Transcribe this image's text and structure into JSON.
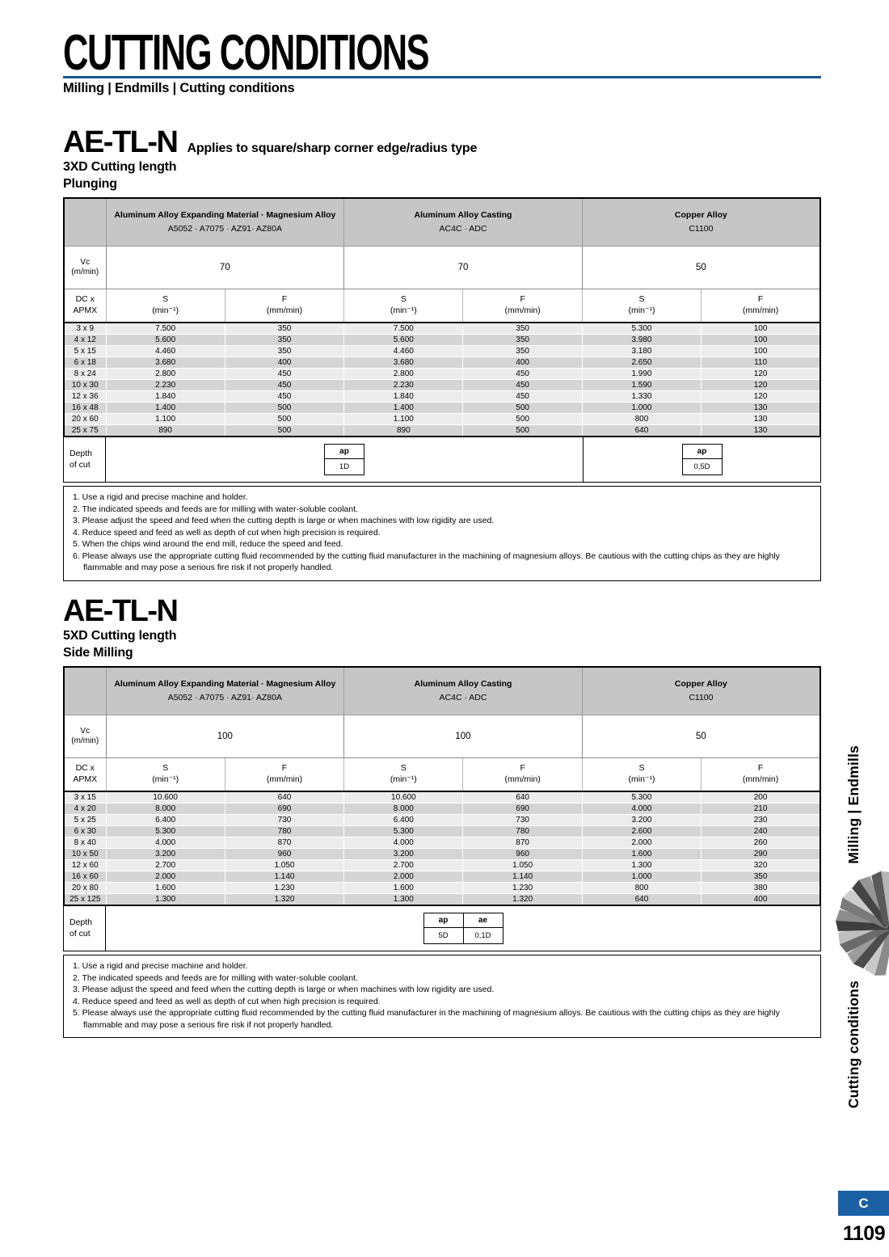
{
  "page": {
    "title": "CUTTING CONDITIONS",
    "breadcrumb": "Milling | Endmills | Cutting conditions",
    "sidebar_top": "Milling | Endmills",
    "sidebar_bottom": "Cutting conditions",
    "section_badge": "C",
    "page_number": "1109",
    "accent_rule_color": "#15568f",
    "badge_color": "#1b5fa5"
  },
  "table_labels": {
    "vc1": "Vc",
    "vc2": "(m/min)",
    "rh1": "DC x",
    "rh2": "APMX",
    "s": "S",
    "s_unit": "(min⁻¹)",
    "f": "F",
    "f_unit": "(mm/min)",
    "depth1": "Depth",
    "depth2": "of cut"
  },
  "sections": [
    {
      "title": "AE-TL-N",
      "subtitle": "Applies to square/sharp corner edge/radius type",
      "cut_length": "3XD Cutting length",
      "operation": "Plunging",
      "groups": [
        {
          "name": "Aluminum Alloy Expanding Material · Magnesium Alloy",
          "grades": "A5052 · A7075 · AZ91· AZ80A",
          "vc": "70"
        },
        {
          "name": "Aluminum Alloy Casting",
          "grades": "AC4C · ADC",
          "vc": "70"
        },
        {
          "name": "Copper Alloy",
          "grades": "C1100",
          "vc": "50"
        }
      ],
      "rows": [
        {
          "size": "3 x 9",
          "values": [
            "7.500",
            "350",
            "7.500",
            "350",
            "5.300",
            "100"
          ]
        },
        {
          "size": "4 x 12",
          "values": [
            "5.600",
            "350",
            "5.600",
            "350",
            "3.980",
            "100"
          ]
        },
        {
          "size": "5 x 15",
          "values": [
            "4.460",
            "350",
            "4.460",
            "350",
            "3.180",
            "100"
          ]
        },
        {
          "size": "6 x 18",
          "values": [
            "3.680",
            "400",
            "3.680",
            "400",
            "2.650",
            "110"
          ]
        },
        {
          "size": "8 x 24",
          "values": [
            "2.800",
            "450",
            "2.800",
            "450",
            "1.990",
            "120"
          ]
        },
        {
          "size": "10 x 30",
          "values": [
            "2.230",
            "450",
            "2.230",
            "450",
            "1.590",
            "120"
          ]
        },
        {
          "size": "12 x 36",
          "values": [
            "1.840",
            "450",
            "1.840",
            "450",
            "1.330",
            "120"
          ]
        },
        {
          "size": "16 x 48",
          "values": [
            "1.400",
            "500",
            "1.400",
            "500",
            "1.000",
            "130"
          ]
        },
        {
          "size": "20 x 60",
          "values": [
            "1.100",
            "500",
            "1.100",
            "500",
            "800",
            "130"
          ]
        },
        {
          "size": "25 x 75",
          "values": [
            "890",
            "500",
            "890",
            "500",
            "640",
            "130"
          ]
        }
      ],
      "depth": {
        "areas": [
          {
            "headers": [
              "ap"
            ],
            "values": [
              "1D"
            ]
          },
          {
            "headers": [
              "ap"
            ],
            "values": [
              "0,5D"
            ]
          }
        ]
      },
      "notes": [
        "1. Use a rigid and precise machine and holder.",
        "2. The indicated speeds and feeds are for milling with water-soluble coolant.",
        "3. Please adjust the speed and feed when the cutting depth is large or when machines with low rigidity are used.",
        "4. Reduce speed and feed as well as depth of cut when high precision is required.",
        "5. When the chips wind around the end mill, reduce the speed and feed.",
        "6. Please always use the appropriate cutting fluid recommended by the cutting fluid manufacturer in the machining of magnesium alloys. Be cautious with the cutting chips as they are highly flammable and may pose a serious fire risk if not properly handled."
      ]
    },
    {
      "title": "AE-TL-N",
      "subtitle": "",
      "cut_length": "5XD Cutting length",
      "operation": "Side Milling",
      "groups": [
        {
          "name": "Aluminum Alloy Expanding Material · Magnesium Alloy",
          "grades": "A5052 · A7075 · AZ91· AZ80A",
          "vc": "100"
        },
        {
          "name": "Aluminum Alloy Casting",
          "grades": "AC4C · ADC",
          "vc": "100"
        },
        {
          "name": "Copper Alloy",
          "grades": "C1100",
          "vc": "50"
        }
      ],
      "rows": [
        {
          "size": "3 x 15",
          "values": [
            "10.600",
            "640",
            "10.600",
            "640",
            "5.300",
            "200"
          ]
        },
        {
          "size": "4 x 20",
          "values": [
            "8.000",
            "690",
            "8.000",
            "690",
            "4.000",
            "210"
          ]
        },
        {
          "size": "5 x 25",
          "values": [
            "6.400",
            "730",
            "6.400",
            "730",
            "3.200",
            "230"
          ]
        },
        {
          "size": "6 x 30",
          "values": [
            "5.300",
            "780",
            "5.300",
            "780",
            "2.600",
            "240"
          ]
        },
        {
          "size": "8 x 40",
          "values": [
            "4.000",
            "870",
            "4.000",
            "870",
            "2.000",
            "260"
          ]
        },
        {
          "size": "10 x 50",
          "values": [
            "3.200",
            "960",
            "3.200",
            "960",
            "1.600",
            "290"
          ]
        },
        {
          "size": "12 x 60",
          "values": [
            "2.700",
            "1.050",
            "2.700",
            "1.050",
            "1.300",
            "320"
          ]
        },
        {
          "size": "16 x 60",
          "values": [
            "2.000",
            "1.140",
            "2.000",
            "1.140",
            "1.000",
            "350"
          ]
        },
        {
          "size": "20 x 80",
          "values": [
            "1.600",
            "1.230",
            "1.600",
            "1.230",
            "800",
            "380"
          ]
        },
        {
          "size": "25 x 125",
          "values": [
            "1.300",
            "1.320",
            "1.300",
            "1.320",
            "640",
            "400"
          ]
        }
      ],
      "depth": {
        "areas": [
          {
            "headers": [
              "ap",
              "ae"
            ],
            "values": [
              "5D",
              "0,1D"
            ]
          }
        ]
      },
      "notes": [
        "1. Use a rigid and precise machine and holder.",
        "2. The indicated speeds and feeds are for milling with water-soluble coolant.",
        "3. Please adjust the speed and feed when the cutting depth is large or when machines with low rigidity are used.",
        "4. Reduce speed and feed as well as depth of cut when high precision is required.",
        "5. Please always use the appropriate cutting fluid recommended by the cutting fluid manufacturer in the machining of magnesium alloys. Be cautious with the cutting chips as they are highly flammable and may pose a serious fire risk if not properly handled."
      ]
    }
  ]
}
